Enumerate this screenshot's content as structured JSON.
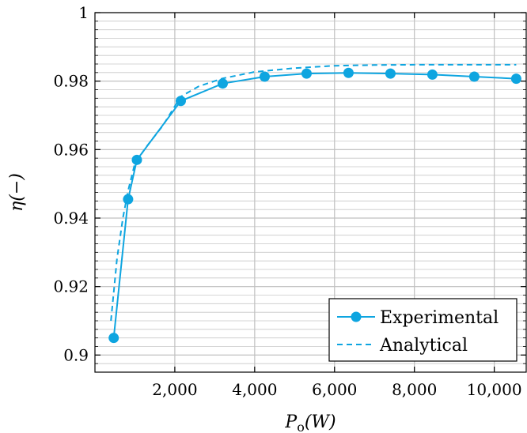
{
  "chart_data": {
    "type": "line",
    "xlabel": "P_o(W)",
    "ylabel": "η(−)",
    "xlim": [
      0,
      10800
    ],
    "ylim": [
      0.895,
      1.0
    ],
    "x_ticks": [
      2000,
      4000,
      6000,
      8000,
      10000
    ],
    "x_tick_labels": [
      "2,000",
      "4,000",
      "6,000",
      "8,000",
      "10,000"
    ],
    "y_ticks": [
      0.9,
      0.92,
      0.94,
      0.96,
      0.98,
      1.0
    ],
    "y_tick_labels": [
      "0.9",
      "0.92",
      "0.94",
      "0.96",
      "0.98",
      "1"
    ],
    "y_minor_step": 0.0025,
    "grid": true,
    "legend_position": "bottom-right",
    "colors": {
      "series": "#0ea5e0",
      "major_grid": "#c0c0c0",
      "minor_grid": "#c8c8c8"
    },
    "series": [
      {
        "name": "Experimental",
        "style": "solid-with-markers",
        "x": [
          470,
          830,
          1050,
          2150,
          3200,
          4250,
          5300,
          6350,
          7400,
          8450,
          9500,
          10550
        ],
        "y": [
          0.905,
          0.9455,
          0.957,
          0.9742,
          0.9793,
          0.9813,
          0.9822,
          0.9824,
          0.9822,
          0.9819,
          0.9813,
          0.9807
        ]
      },
      {
        "name": "Analytical",
        "style": "dashed",
        "x": [
          400,
          550,
          700,
          830,
          1000,
          1300,
          1700,
          2150,
          2600,
          3200,
          4000,
          5000,
          6000,
          7000,
          8000,
          9000,
          10000,
          10550
        ],
        "y": [
          0.91,
          0.928,
          0.94,
          0.948,
          0.956,
          0.961,
          0.967,
          0.9755,
          0.9785,
          0.9808,
          0.9827,
          0.9838,
          0.9845,
          0.9847,
          0.9848,
          0.9848,
          0.9848,
          0.9848
        ]
      }
    ]
  }
}
